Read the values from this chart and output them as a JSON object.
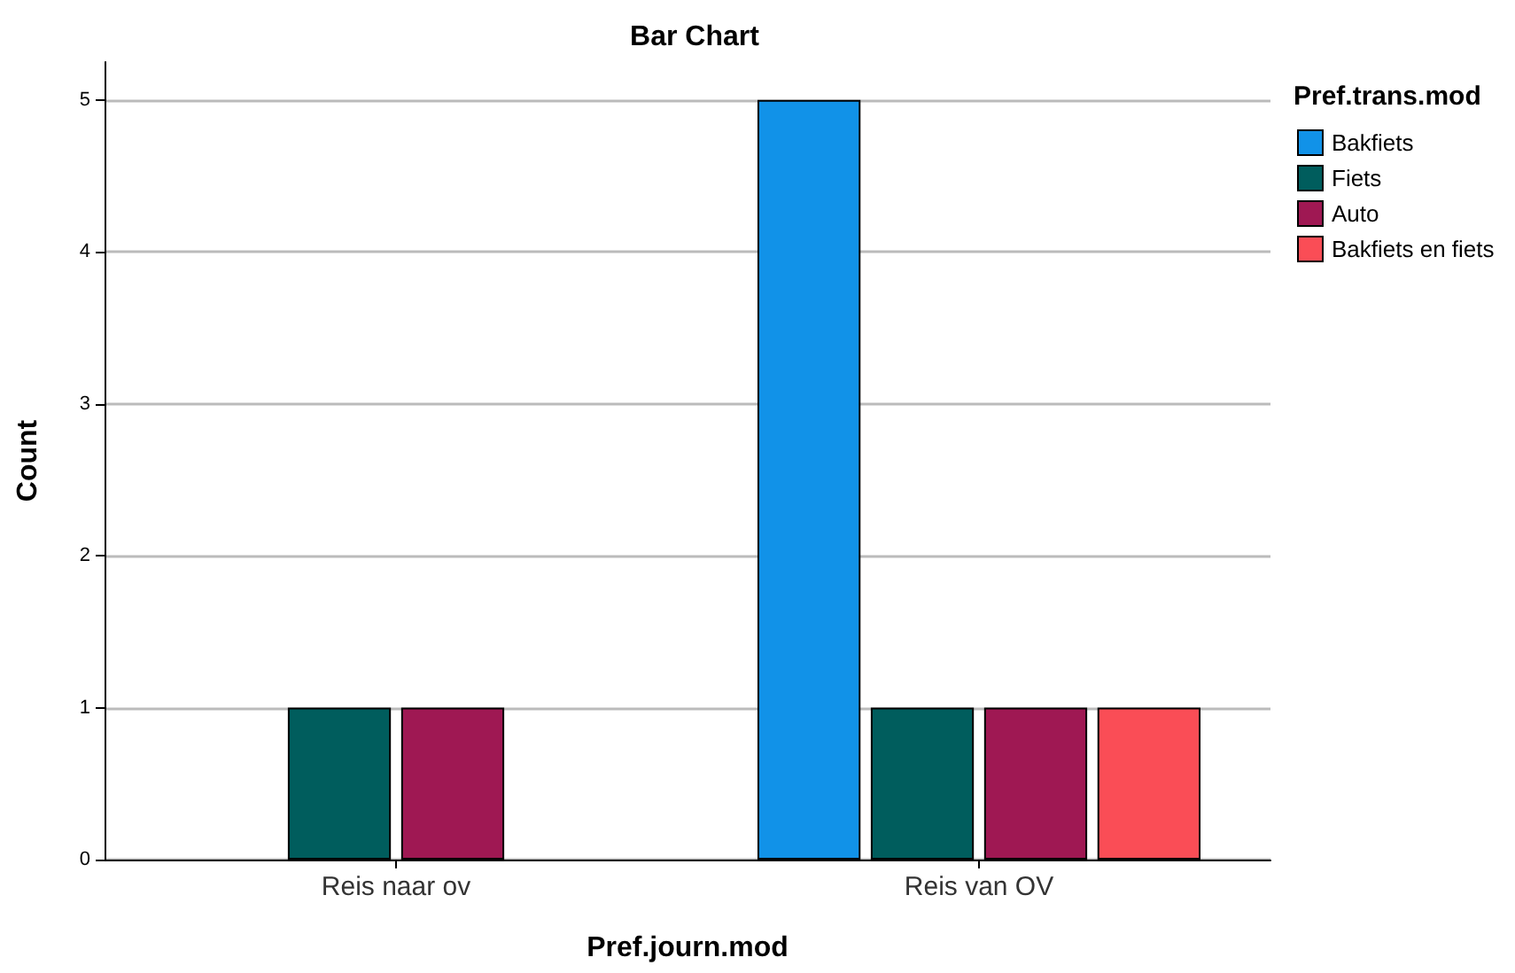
{
  "chart_data": {
    "type": "bar",
    "title": "Bar Chart",
    "xlabel": "Pref.journ.mod",
    "ylabel": "Count",
    "legend_title": "Pref.trans.mod",
    "categories": [
      "Reis naar ov",
      "Reis van OV"
    ],
    "series": [
      {
        "name": "Bakfiets",
        "color": "#1192e8",
        "values": [
          null,
          5
        ]
      },
      {
        "name": "Fiets",
        "color": "#005d5d",
        "values": [
          1,
          1
        ]
      },
      {
        "name": "Auto",
        "color": "#9f1853",
        "values": [
          1,
          1
        ]
      },
      {
        "name": "Bakfiets en fiets",
        "color": "#fa4d56",
        "values": [
          null,
          1
        ]
      }
    ],
    "ylim": [
      0,
      5.25
    ],
    "yticks": [
      0,
      1,
      2,
      3,
      4,
      5
    ],
    "grid": "y",
    "legend": "top right"
  }
}
